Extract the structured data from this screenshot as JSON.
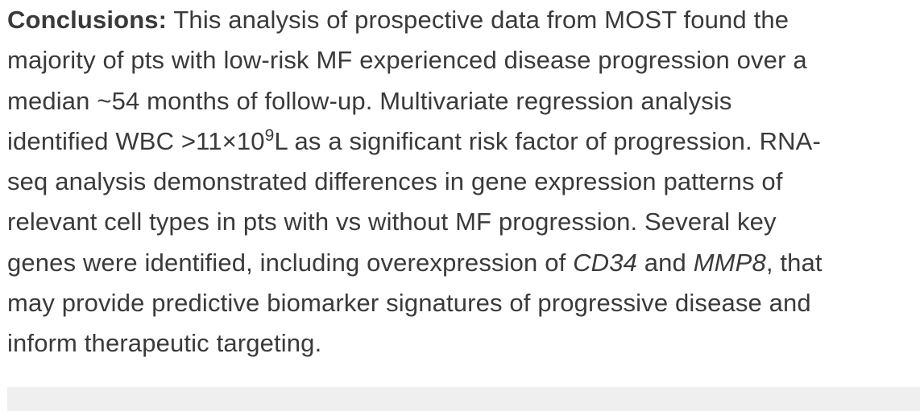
{
  "conclusions": {
    "label": "Conclusions:",
    "line1_text": " This analysis of prospective data from MOST found the",
    "line2": "majority of pts with low-risk MF experienced disease progression over a",
    "line3": "median ~54 months of follow-up. Multivariate regression analysis",
    "line4_pre": "identified WBC >11×10",
    "line4_sup": "9",
    "line4_post": "L as a significant risk factor of progression. RNA-",
    "line5": "seq analysis demonstrated differences in gene expression patterns of",
    "line6": "relevant cell types in pts with vs without MF progression. Several key",
    "line7_pre": "genes were identified, including overexpression of ",
    "line7_gene1": "CD34",
    "line7_mid": " and ",
    "line7_gene2": "MMP8",
    "line7_post": ", that",
    "line8": "may provide predictive biomarker signatures of progressive disease and",
    "line9": "inform therapeutic targeting."
  }
}
